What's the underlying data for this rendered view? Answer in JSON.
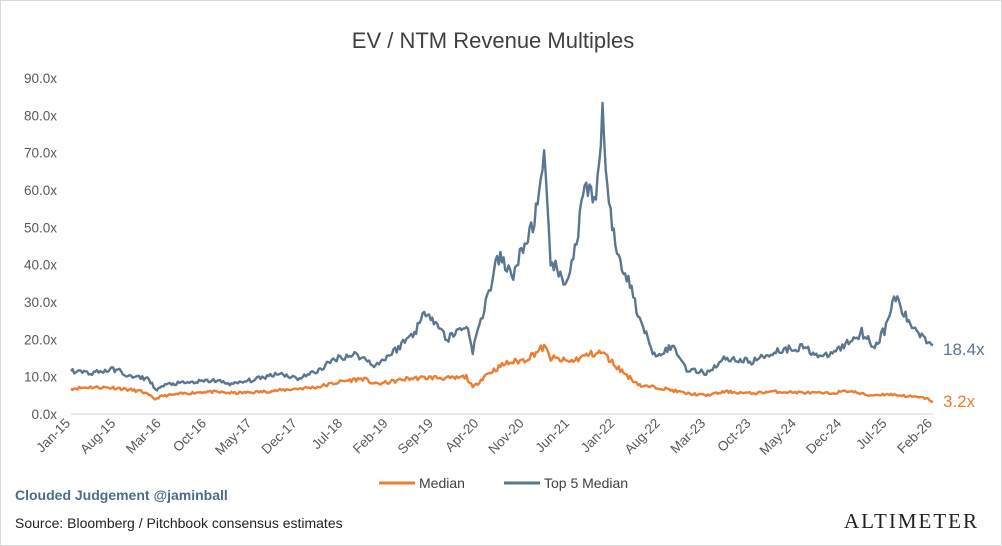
{
  "chart_data": {
    "type": "line",
    "title": "EV / NTM Revenue Multiples",
    "xlabel": "",
    "ylabel": "",
    "ylim": [
      0,
      90
    ],
    "yticks": [
      "0.0x",
      "10.0x",
      "20.0x",
      "30.0x",
      "40.0x",
      "50.0x",
      "60.0x",
      "70.0x",
      "80.0x",
      "90.0x"
    ],
    "x_tick_labels": [
      "Jan-15",
      "Aug-15",
      "Mar-16",
      "Oct-16",
      "May-17",
      "Dec-17",
      "Jul-18",
      "Feb-19",
      "Sep-19",
      "Apr-20",
      "Nov-20",
      "Jun-21",
      "Jan-22",
      "Aug-22",
      "Mar-23",
      "Oct-23",
      "May-24",
      "Dec-24",
      "Jul-25",
      "Feb-26"
    ],
    "grid": false,
    "legend_position": "bottom",
    "series": [
      {
        "name": "Median",
        "color": "#ED7D31",
        "end_label": "3.2x",
        "points": [
          [
            "2015-01",
            6.8
          ],
          [
            "2015-04",
            7.2
          ],
          [
            "2015-08",
            7.0
          ],
          [
            "2015-12",
            6.0
          ],
          [
            "2016-02",
            4.0
          ],
          [
            "2016-03",
            4.8
          ],
          [
            "2016-06",
            5.4
          ],
          [
            "2016-10",
            6.0
          ],
          [
            "2017-02",
            5.6
          ],
          [
            "2017-05",
            5.8
          ],
          [
            "2017-09",
            6.3
          ],
          [
            "2017-12",
            6.8
          ],
          [
            "2018-03",
            7.2
          ],
          [
            "2018-07",
            8.8
          ],
          [
            "2018-10",
            9.5
          ],
          [
            "2018-12",
            8.0
          ],
          [
            "2019-02",
            8.5
          ],
          [
            "2019-05",
            9.5
          ],
          [
            "2019-09",
            9.8
          ],
          [
            "2019-12",
            9.5
          ],
          [
            "2020-02",
            10.0
          ],
          [
            "2020-03",
            7.0
          ],
          [
            "2020-05",
            10.5
          ],
          [
            "2020-08",
            13.5
          ],
          [
            "2020-11",
            14.5
          ],
          [
            "2021-02",
            18.0
          ],
          [
            "2021-03",
            15.0
          ],
          [
            "2021-06",
            14.0
          ],
          [
            "2021-09",
            16.0
          ],
          [
            "2021-11",
            16.5
          ],
          [
            "2022-01",
            13.0
          ],
          [
            "2022-03",
            10.0
          ],
          [
            "2022-05",
            7.5
          ],
          [
            "2022-08",
            7.0
          ],
          [
            "2022-12",
            5.5
          ],
          [
            "2023-03",
            5.0
          ],
          [
            "2023-06",
            6.0
          ],
          [
            "2023-10",
            5.5
          ],
          [
            "2024-01",
            6.0
          ],
          [
            "2024-05",
            5.8
          ],
          [
            "2024-10",
            5.5
          ],
          [
            "2025-01",
            6.2
          ],
          [
            "2025-04",
            5.0
          ],
          [
            "2025-07",
            5.3
          ],
          [
            "2025-10",
            4.8
          ],
          [
            "2026-01",
            4.2
          ],
          [
            "2026-02",
            3.2
          ]
        ]
      },
      {
        "name": "Top 5 Median",
        "color": "#5A7691",
        "end_label": "18.4x",
        "points": [
          [
            "2015-01",
            11.5
          ],
          [
            "2015-04",
            11.0
          ],
          [
            "2015-08",
            12.0
          ],
          [
            "2015-10",
            10.0
          ],
          [
            "2016-01",
            9.5
          ],
          [
            "2016-02",
            6.5
          ],
          [
            "2016-04",
            8.0
          ],
          [
            "2016-08",
            8.5
          ],
          [
            "2016-11",
            9.0
          ],
          [
            "2017-02",
            8.0
          ],
          [
            "2017-06",
            9.5
          ],
          [
            "2017-09",
            11.0
          ],
          [
            "2017-12",
            9.5
          ],
          [
            "2018-03",
            11.5
          ],
          [
            "2018-06",
            15.0
          ],
          [
            "2018-09",
            16.0
          ],
          [
            "2018-12",
            13.0
          ],
          [
            "2019-03",
            17.0
          ],
          [
            "2019-06",
            22.0
          ],
          [
            "2019-08",
            28.0
          ],
          [
            "2019-11",
            20.0
          ],
          [
            "2020-02",
            24.0
          ],
          [
            "2020-03",
            17.0
          ],
          [
            "2020-05",
            30.0
          ],
          [
            "2020-07",
            42.0
          ],
          [
            "2020-09",
            37.0
          ],
          [
            "2020-11",
            45.0
          ],
          [
            "2021-01",
            55.0
          ],
          [
            "2021-02",
            67.0
          ],
          [
            "2021-03",
            42.0
          ],
          [
            "2021-05",
            34.0
          ],
          [
            "2021-07",
            45.0
          ],
          [
            "2021-08",
            60.0
          ],
          [
            "2021-10",
            56.0
          ],
          [
            "2021-11",
            79.0
          ],
          [
            "2021-12",
            58.0
          ],
          [
            "2022-01",
            44.0
          ],
          [
            "2022-03",
            36.0
          ],
          [
            "2022-05",
            24.0
          ],
          [
            "2022-07",
            16.0
          ],
          [
            "2022-10",
            18.0
          ],
          [
            "2022-12",
            12.0
          ],
          [
            "2023-03",
            11.0
          ],
          [
            "2023-06",
            15.0
          ],
          [
            "2023-10",
            14.0
          ],
          [
            "2024-02",
            17.0
          ],
          [
            "2024-06",
            18.0
          ],
          [
            "2024-09",
            15.0
          ],
          [
            "2024-12",
            18.0
          ],
          [
            "2025-03",
            22.0
          ],
          [
            "2025-05",
            18.0
          ],
          [
            "2025-07",
            24.0
          ],
          [
            "2025-08",
            32.0
          ],
          [
            "2025-10",
            25.0
          ],
          [
            "2026-01",
            20.0
          ],
          [
            "2026-02",
            18.4
          ]
        ]
      }
    ]
  },
  "credit_text": "Clouded Judgement @jaminball",
  "source_text": "Source: Bloomberg / Pitchbook consensus estimates",
  "brand_text": "ALTIMETER"
}
